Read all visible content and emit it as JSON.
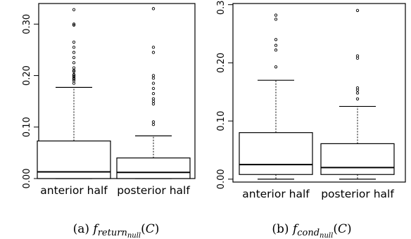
{
  "chart_data": [
    {
      "type": "boxplot",
      "caption": "(a)",
      "caption_math": "f_{return_{null}}(C)",
      "categories": [
        "anterior half",
        "posterior half"
      ],
      "ylim": [
        0,
        0.34
      ],
      "yticks": [
        0.0,
        0.1,
        0.2,
        0.3
      ],
      "ytick_labels": [
        "0.00",
        "0.10",
        "0.20",
        "0.30"
      ],
      "boxes": [
        {
          "name": "anterior half",
          "min": 0.0,
          "q1": 0.0,
          "median": 0.013,
          "q3": 0.073,
          "whisker_high": 0.177,
          "outliers": [
            0.185,
            0.19,
            0.193,
            0.195,
            0.198,
            0.2,
            0.202,
            0.208,
            0.21,
            0.215,
            0.225,
            0.235,
            0.245,
            0.255,
            0.265,
            0.298,
            0.3,
            0.328
          ]
        },
        {
          "name": "posterior half",
          "min": 0.0,
          "q1": 0.0,
          "median": 0.012,
          "q3": 0.04,
          "whisker_high": 0.083,
          "outliers": [
            0.105,
            0.11,
            0.145,
            0.15,
            0.155,
            0.165,
            0.175,
            0.185,
            0.195,
            0.2,
            0.245,
            0.255,
            0.33
          ]
        }
      ]
    },
    {
      "type": "boxplot",
      "caption": "(b)",
      "caption_math": "f_{cond_{null}}(C)",
      "categories": [
        "anterior half",
        "posterior half"
      ],
      "ylim": [
        -0.005,
        0.302
      ],
      "yticks": [
        0.0,
        0.1,
        0.2,
        0.3
      ],
      "ytick_labels": [
        "0.00",
        "0.10",
        "0.20",
        "0.30"
      ],
      "boxes": [
        {
          "name": "anterior half",
          "min": 0.0,
          "q1": 0.008,
          "median": 0.025,
          "q3": 0.08,
          "whisker_high": 0.17,
          "outliers": [
            0.193,
            0.222,
            0.23,
            0.24,
            0.275,
            0.282
          ]
        },
        {
          "name": "posterior half",
          "min": 0.0,
          "q1": 0.008,
          "median": 0.02,
          "q3": 0.061,
          "whisker_high": 0.125,
          "outliers": [
            0.138,
            0.148,
            0.153,
            0.157,
            0.208,
            0.212,
            0.29
          ]
        }
      ]
    }
  ]
}
